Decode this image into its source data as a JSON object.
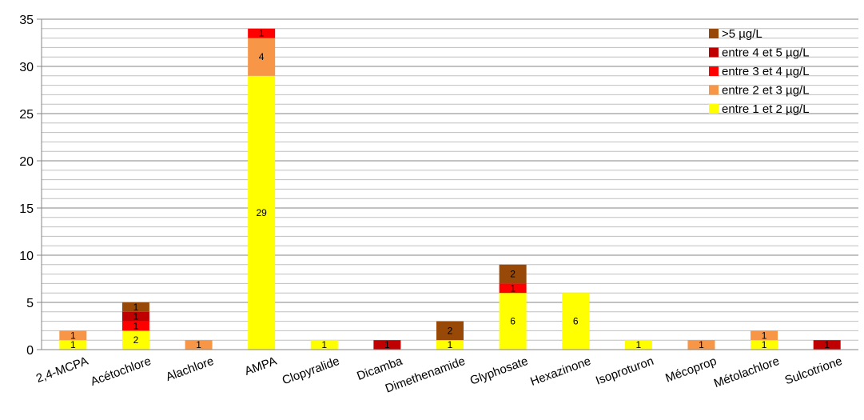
{
  "chart_data": {
    "type": "bar",
    "stacked": true,
    "title": "",
    "xlabel": "",
    "ylabel": "",
    "ylim": [
      0,
      35
    ],
    "yticks": [
      0,
      5,
      10,
      15,
      20,
      25,
      30,
      35
    ],
    "minor_grid_step": 1,
    "grid": true,
    "legend_position": "top-right",
    "categories": [
      "2,4-MCPA",
      "Acétochlore",
      "Alachlore",
      "AMPA",
      "Clopyralide",
      "Dicamba",
      "Dimethenamide",
      "Glyphosate",
      "Hexazinone",
      "Isoproturon",
      "Mécoprop",
      "Métolachlore",
      "Sulcotrione"
    ],
    "series": [
      {
        "name": "entre 1 et 2 µg/L",
        "color": "#FFFF00",
        "values": [
          1,
          2,
          0,
          29,
          1,
          0,
          1,
          6,
          6,
          1,
          0,
          1,
          0
        ]
      },
      {
        "name": "entre 2 et 3 µg/L",
        "color": "#F79646",
        "values": [
          1,
          0,
          1,
          4,
          0,
          0,
          0,
          0,
          0,
          0,
          1,
          1,
          0
        ]
      },
      {
        "name": "entre 3 et 4 µg/L",
        "color": "#FF0000",
        "values": [
          0,
          1,
          0,
          1,
          0,
          0,
          0,
          1,
          0,
          0,
          0,
          0,
          0
        ]
      },
      {
        "name": "entre 4 et 5 µg/L",
        "color": "#C00000",
        "values": [
          0,
          1,
          0,
          0,
          0,
          1,
          0,
          0,
          0,
          0,
          0,
          0,
          1
        ]
      },
      {
        "name": ">5 µg/L",
        "color": "#984807",
        "values": [
          0,
          1,
          0,
          0,
          0,
          0,
          2,
          2,
          0,
          0,
          0,
          0,
          0
        ]
      }
    ],
    "legend_order": [
      4,
      3,
      2,
      1,
      0
    ]
  }
}
